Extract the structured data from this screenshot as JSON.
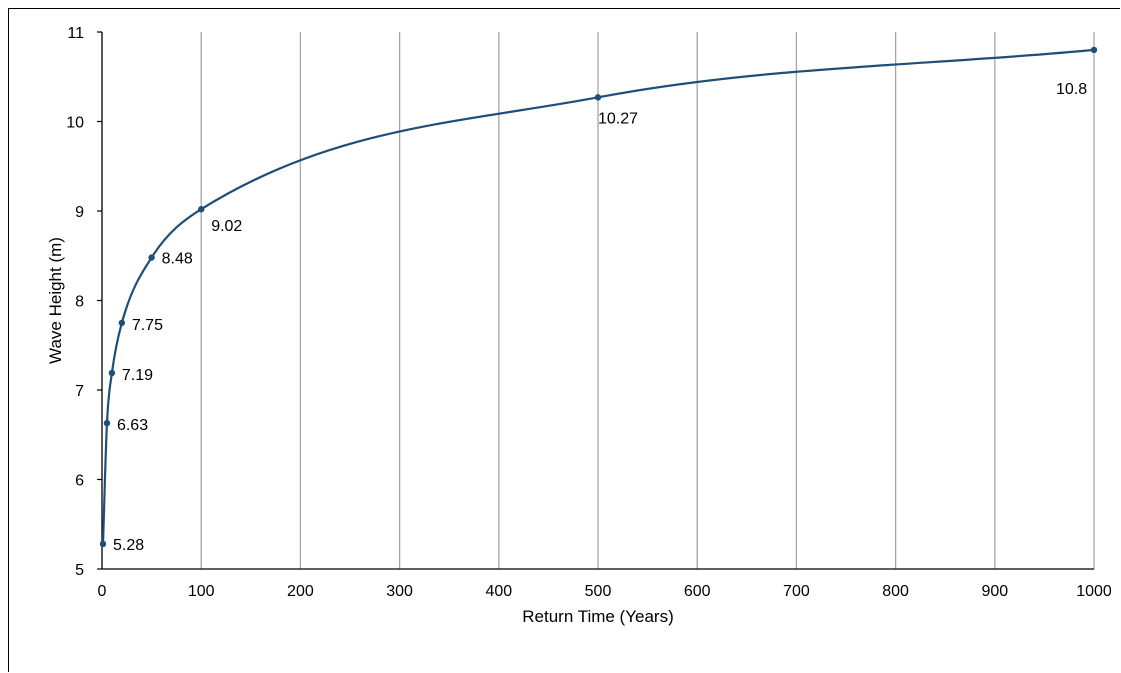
{
  "chart_data": {
    "type": "line",
    "title": "",
    "xlabel": "Return Time (Years)",
    "ylabel": "Wave Height (m)",
    "xlim": [
      0,
      1000
    ],
    "ylim": [
      5,
      11
    ],
    "xticks": [
      0,
      100,
      200,
      300,
      400,
      500,
      600,
      700,
      800,
      900,
      1000
    ],
    "yticks": [
      5,
      6,
      7,
      8,
      9,
      10,
      11
    ],
    "grid": "vertical",
    "legend": "none",
    "series": [
      {
        "x": [
          1,
          5,
          10,
          20,
          50,
          100,
          500,
          1000
        ],
        "y": [
          5.28,
          6.63,
          7.19,
          7.75,
          8.48,
          9.02,
          10.27,
          10.8
        ],
        "labels": [
          "5.28",
          "6.63",
          "7.19",
          "7.75",
          "8.48",
          "9.02",
          "10.27",
          "10.8"
        ],
        "color": "#1f4e79"
      }
    ],
    "colors": {
      "line": "#1f4e79",
      "grid": "#a6a6a6",
      "axis": "#000000"
    }
  }
}
